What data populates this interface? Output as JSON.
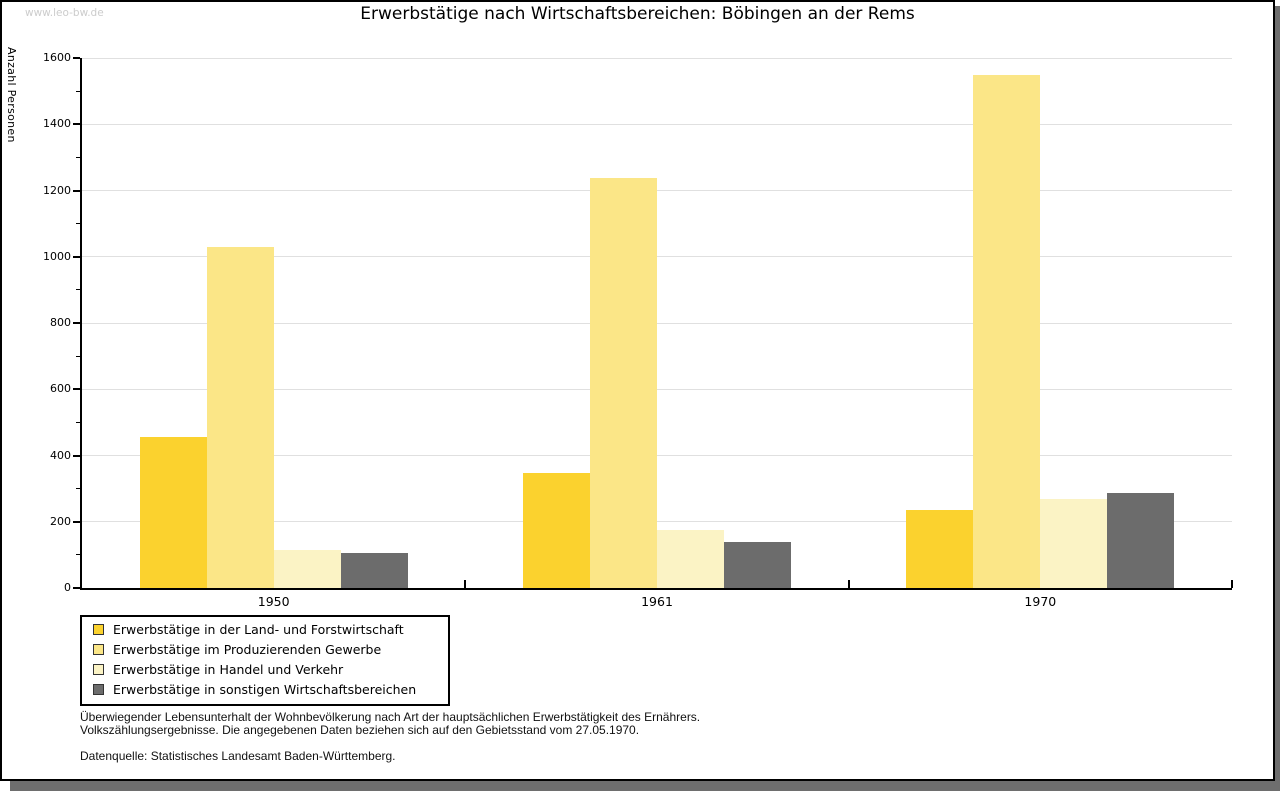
{
  "window": {
    "watermark": "www.leo-bw.de"
  },
  "chart_data": {
    "type": "bar",
    "title": "Erwerbstätige nach Wirtschaftsbereichen: Böbingen an der Rems",
    "xlabel": "",
    "ylabel": "Anzahl Personen",
    "categories": [
      "1950",
      "1961",
      "1970"
    ],
    "series": [
      {
        "name": "Erwerbstätige in der Land- und Forstwirtschaft",
        "color": "#fbd22e",
        "values": [
          455,
          347,
          235
        ]
      },
      {
        "name": "Erwerbstätige im Produzierenden Gewerbe",
        "color": "#fbe687",
        "values": [
          1028,
          1238,
          1550
        ]
      },
      {
        "name": "Erwerbstätige in Handel und Verkehr",
        "color": "#fbf3c5",
        "values": [
          115,
          176,
          269
        ]
      },
      {
        "name": "Erwerbstätige in sonstigen Wirtschaftsbereichen",
        "color": "#6c6c6c",
        "values": [
          105,
          138,
          286
        ]
      }
    ],
    "ylim": [
      0,
      1600
    ],
    "ytick_step": 200,
    "yminor_step": 100,
    "grid": true,
    "legend_position": "bottom-left"
  },
  "footer": {
    "notes": [
      "Überwiegender Lebensunterhalt der Wohnbevölkerung nach Art der hauptsächlichen Erwerbstätigkeit des Ernährers.",
      "Volkszählungsergebnisse. Die angegebenen Daten beziehen sich auf den Gebietsstand vom 27.05.1970."
    ],
    "source": "Datenquelle: Statistisches Landesamt Baden-Württemberg."
  }
}
